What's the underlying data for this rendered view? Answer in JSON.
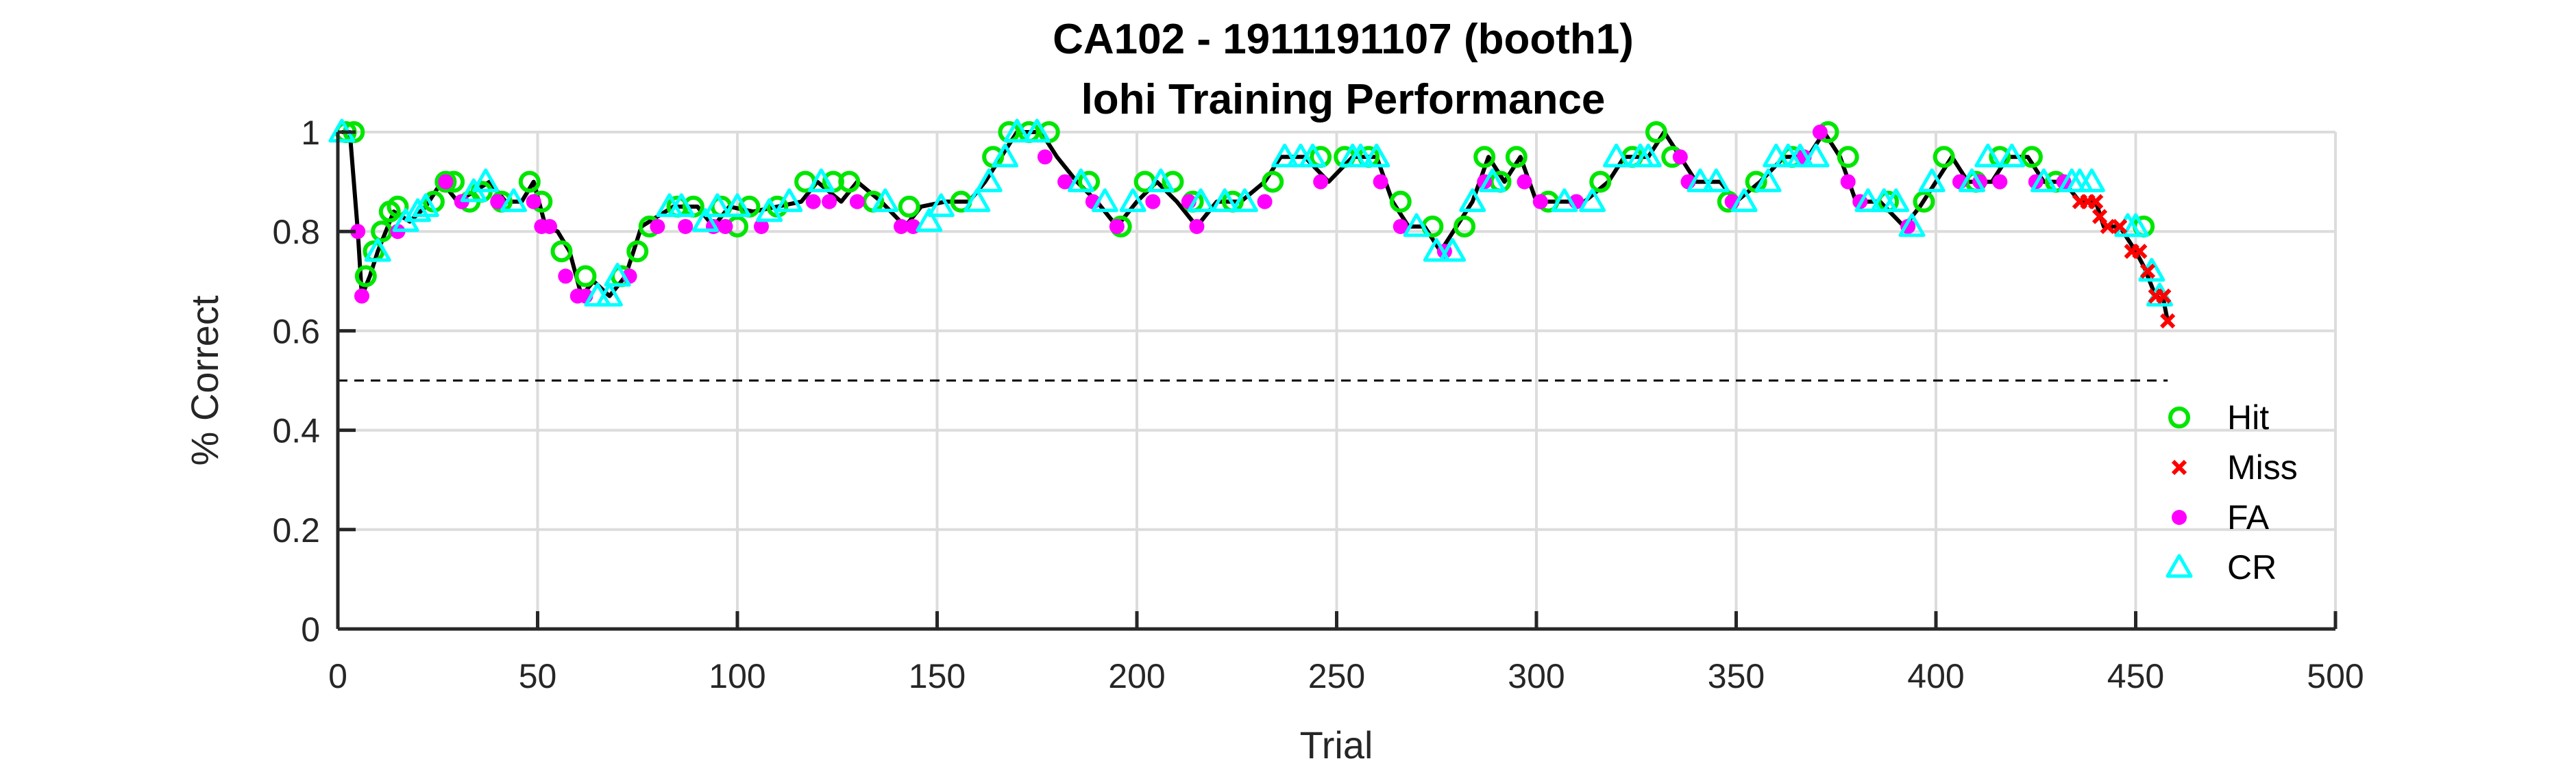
{
  "chart_data": {
    "type": "scatter",
    "title": "CA102 - 1911191107 (booth1)",
    "subtitle": "lohi Training Performance",
    "xlabel": "Trial",
    "ylabel": "% Correct",
    "xlim": [
      0,
      500
    ],
    "ylim": [
      0,
      1
    ],
    "xticks": [
      "0",
      "50",
      "100",
      "150",
      "200",
      "250",
      "300",
      "350",
      "400",
      "450",
      "500"
    ],
    "yticks": [
      "0",
      "0.2",
      "0.4",
      "0.6",
      "0.8",
      "1"
    ],
    "grid": true,
    "reference_line": {
      "y": 0.5,
      "style": "dashed"
    },
    "legend_position": "bottom-right",
    "colors": {
      "Hit": "#00e600",
      "Miss": "#ff0000",
      "FA": "#ff00ff",
      "CR": "#00ffff",
      "line": "#000000"
    },
    "line_points": [
      [
        1,
        1.0
      ],
      [
        3,
        1.0
      ],
      [
        5,
        0.8
      ],
      [
        6,
        0.67
      ],
      [
        8,
        0.71
      ],
      [
        10,
        0.76
      ],
      [
        12,
        0.8
      ],
      [
        14,
        0.84
      ],
      [
        18,
        0.82
      ],
      [
        22,
        0.85
      ],
      [
        26,
        0.9
      ],
      [
        30,
        0.86
      ],
      [
        34,
        0.88
      ],
      [
        38,
        0.9
      ],
      [
        42,
        0.86
      ],
      [
        46,
        0.86
      ],
      [
        49,
        0.9
      ],
      [
        52,
        0.81
      ],
      [
        55,
        0.8
      ],
      [
        58,
        0.76
      ],
      [
        61,
        0.67
      ],
      [
        64,
        0.7
      ],
      [
        68,
        0.67
      ],
      [
        72,
        0.71
      ],
      [
        76,
        0.81
      ],
      [
        80,
        0.83
      ],
      [
        84,
        0.85
      ],
      [
        90,
        0.85
      ],
      [
        94,
        0.81
      ],
      [
        98,
        0.85
      ],
      [
        104,
        0.84
      ],
      [
        110,
        0.85
      ],
      [
        116,
        0.86
      ],
      [
        120,
        0.9
      ],
      [
        126,
        0.86
      ],
      [
        130,
        0.9
      ],
      [
        136,
        0.86
      ],
      [
        142,
        0.81
      ],
      [
        146,
        0.85
      ],
      [
        152,
        0.86
      ],
      [
        158,
        0.86
      ],
      [
        162,
        0.9
      ],
      [
        166,
        0.95
      ],
      [
        170,
        1.0
      ],
      [
        176,
        1.0
      ],
      [
        180,
        0.95
      ],
      [
        185,
        0.9
      ],
      [
        190,
        0.86
      ],
      [
        195,
        0.81
      ],
      [
        200,
        0.86
      ],
      [
        205,
        0.9
      ],
      [
        210,
        0.86
      ],
      [
        215,
        0.81
      ],
      [
        220,
        0.86
      ],
      [
        226,
        0.86
      ],
      [
        232,
        0.9
      ],
      [
        236,
        0.95
      ],
      [
        242,
        0.95
      ],
      [
        248,
        0.9
      ],
      [
        254,
        0.95
      ],
      [
        260,
        0.95
      ],
      [
        264,
        0.86
      ],
      [
        268,
        0.81
      ],
      [
        272,
        0.81
      ],
      [
        276,
        0.76
      ],
      [
        280,
        0.81
      ],
      [
        284,
        0.86
      ],
      [
        288,
        0.95
      ],
      [
        292,
        0.9
      ],
      [
        296,
        0.95
      ],
      [
        300,
        0.86
      ],
      [
        306,
        0.86
      ],
      [
        312,
        0.86
      ],
      [
        318,
        0.9
      ],
      [
        322,
        0.95
      ],
      [
        328,
        0.95
      ],
      [
        332,
        1.0
      ],
      [
        336,
        0.95
      ],
      [
        340,
        0.9
      ],
      [
        346,
        0.9
      ],
      [
        350,
        0.86
      ],
      [
        356,
        0.9
      ],
      [
        362,
        0.95
      ],
      [
        368,
        0.95
      ],
      [
        372,
        1.0
      ],
      [
        376,
        0.95
      ],
      [
        380,
        0.86
      ],
      [
        386,
        0.86
      ],
      [
        392,
        0.81
      ],
      [
        396,
        0.85
      ],
      [
        400,
        0.9
      ],
      [
        404,
        0.95
      ],
      [
        408,
        0.9
      ],
      [
        414,
        0.9
      ],
      [
        418,
        0.95
      ],
      [
        423,
        0.95
      ],
      [
        427,
        0.9
      ],
      [
        432,
        0.9
      ],
      [
        436,
        0.86
      ],
      [
        440,
        0.86
      ],
      [
        442,
        0.81
      ],
      [
        446,
        0.81
      ],
      [
        450,
        0.76
      ],
      [
        452,
        0.73
      ],
      [
        455,
        0.67
      ],
      [
        457,
        0.66
      ],
      [
        458,
        0.62
      ]
    ],
    "series": [
      {
        "name": "Hit",
        "marker": "circle-open",
        "points": [
          [
            2,
            1.0
          ],
          [
            4,
            1.0
          ],
          [
            7,
            0.71
          ],
          [
            9,
            0.76
          ],
          [
            11,
            0.8
          ],
          [
            13,
            0.84
          ],
          [
            15,
            0.85
          ],
          [
            24,
            0.86
          ],
          [
            27,
            0.9
          ],
          [
            29,
            0.9
          ],
          [
            33,
            0.86
          ],
          [
            36,
            0.88
          ],
          [
            41,
            0.86
          ],
          [
            48,
            0.9
          ],
          [
            51,
            0.86
          ],
          [
            56,
            0.76
          ],
          [
            62,
            0.71
          ],
          [
            71,
            0.71
          ],
          [
            75,
            0.76
          ],
          [
            78,
            0.81
          ],
          [
            85,
            0.85
          ],
          [
            89,
            0.85
          ],
          [
            96,
            0.85
          ],
          [
            100,
            0.81
          ],
          [
            103,
            0.85
          ],
          [
            110,
            0.85
          ],
          [
            117,
            0.9
          ],
          [
            124,
            0.9
          ],
          [
            128,
            0.9
          ],
          [
            134,
            0.86
          ],
          [
            143,
            0.85
          ],
          [
            156,
            0.86
          ],
          [
            164,
            0.95
          ],
          [
            168,
            1.0
          ],
          [
            173,
            1.0
          ],
          [
            178,
            1.0
          ],
          [
            188,
            0.9
          ],
          [
            196,
            0.81
          ],
          [
            202,
            0.9
          ],
          [
            209,
            0.9
          ],
          [
            214,
            0.86
          ],
          [
            224,
            0.86
          ],
          [
            234,
            0.9
          ],
          [
            246,
            0.95
          ],
          [
            252,
            0.95
          ],
          [
            258,
            0.95
          ],
          [
            266,
            0.86
          ],
          [
            274,
            0.81
          ],
          [
            282,
            0.81
          ],
          [
            287,
            0.95
          ],
          [
            291,
            0.9
          ],
          [
            295,
            0.95
          ],
          [
            303,
            0.86
          ],
          [
            316,
            0.9
          ],
          [
            324,
            0.95
          ],
          [
            330,
            1.0
          ],
          [
            334,
            0.95
          ],
          [
            348,
            0.86
          ],
          [
            355,
            0.9
          ],
          [
            364,
            0.95
          ],
          [
            373,
            1.0
          ],
          [
            378,
            0.95
          ],
          [
            388,
            0.86
          ],
          [
            397,
            0.86
          ],
          [
            402,
            0.95
          ],
          [
            410,
            0.9
          ],
          [
            416,
            0.95
          ],
          [
            424,
            0.95
          ],
          [
            430,
            0.9
          ],
          [
            452,
            0.81
          ]
        ]
      },
      {
        "name": "Miss",
        "marker": "x",
        "points": [
          [
            436,
            0.86
          ],
          [
            438,
            0.86
          ],
          [
            440,
            0.86
          ],
          [
            441,
            0.83
          ],
          [
            443,
            0.81
          ],
          [
            446,
            0.81
          ],
          [
            449,
            0.76
          ],
          [
            451,
            0.76
          ],
          [
            453,
            0.72
          ],
          [
            455,
            0.67
          ],
          [
            457,
            0.67
          ],
          [
            458,
            0.62
          ]
        ]
      },
      {
        "name": "FA",
        "marker": "circle-filled",
        "points": [
          [
            5,
            0.8
          ],
          [
            6,
            0.67
          ],
          [
            15,
            0.8
          ],
          [
            27,
            0.9
          ],
          [
            31,
            0.86
          ],
          [
            40,
            0.86
          ],
          [
            49,
            0.86
          ],
          [
            51,
            0.81
          ],
          [
            53,
            0.81
          ],
          [
            57,
            0.71
          ],
          [
            60,
            0.67
          ],
          [
            62,
            0.67
          ],
          [
            73,
            0.71
          ],
          [
            80,
            0.81
          ],
          [
            87,
            0.81
          ],
          [
            94,
            0.81
          ],
          [
            97,
            0.81
          ],
          [
            106,
            0.81
          ],
          [
            119,
            0.86
          ],
          [
            123,
            0.86
          ],
          [
            130,
            0.86
          ],
          [
            141,
            0.81
          ],
          [
            144,
            0.81
          ],
          [
            177,
            0.95
          ],
          [
            182,
            0.9
          ],
          [
            189,
            0.86
          ],
          [
            195,
            0.81
          ],
          [
            204,
            0.86
          ],
          [
            213,
            0.86
          ],
          [
            215,
            0.81
          ],
          [
            232,
            0.86
          ],
          [
            246,
            0.9
          ],
          [
            261,
            0.9
          ],
          [
            266,
            0.81
          ],
          [
            277,
            0.76
          ],
          [
            287,
            0.9
          ],
          [
            297,
            0.9
          ],
          [
            301,
            0.86
          ],
          [
            310,
            0.86
          ],
          [
            336,
            0.95
          ],
          [
            338,
            0.9
          ],
          [
            349,
            0.86
          ],
          [
            367,
            0.95
          ],
          [
            371,
            1.0
          ],
          [
            378,
            0.9
          ],
          [
            381,
            0.86
          ],
          [
            393,
            0.81
          ],
          [
            406,
            0.9
          ],
          [
            411,
            0.9
          ],
          [
            416,
            0.9
          ],
          [
            425,
            0.9
          ],
          [
            432,
            0.9
          ]
        ]
      },
      {
        "name": "CR",
        "marker": "triangle-open",
        "points": [
          [
            1,
            1.0
          ],
          [
            10,
            0.76
          ],
          [
            17,
            0.82
          ],
          [
            20,
            0.84
          ],
          [
            22,
            0.85
          ],
          [
            34,
            0.88
          ],
          [
            37,
            0.9
          ],
          [
            44,
            0.86
          ],
          [
            65,
            0.67
          ],
          [
            68,
            0.67
          ],
          [
            70,
            0.71
          ],
          [
            83,
            0.85
          ],
          [
            86,
            0.85
          ],
          [
            92,
            0.82
          ],
          [
            95,
            0.85
          ],
          [
            100,
            0.85
          ],
          [
            108,
            0.84
          ],
          [
            113,
            0.86
          ],
          [
            121,
            0.9
          ],
          [
            137,
            0.86
          ],
          [
            148,
            0.82
          ],
          [
            151,
            0.85
          ],
          [
            160,
            0.86
          ],
          [
            163,
            0.9
          ],
          [
            167,
            0.95
          ],
          [
            170,
            1.0
          ],
          [
            175,
            1.0
          ],
          [
            186,
            0.9
          ],
          [
            192,
            0.86
          ],
          [
            199,
            0.86
          ],
          [
            206,
            0.9
          ],
          [
            216,
            0.86
          ],
          [
            222,
            0.86
          ],
          [
            227,
            0.86
          ],
          [
            237,
            0.95
          ],
          [
            241,
            0.95
          ],
          [
            244,
            0.95
          ],
          [
            254,
            0.95
          ],
          [
            256,
            0.95
          ],
          [
            260,
            0.95
          ],
          [
            270,
            0.81
          ],
          [
            275,
            0.76
          ],
          [
            279,
            0.76
          ],
          [
            284,
            0.86
          ],
          [
            289,
            0.9
          ],
          [
            307,
            0.86
          ],
          [
            314,
            0.86
          ],
          [
            320,
            0.95
          ],
          [
            326,
            0.95
          ],
          [
            328,
            0.95
          ],
          [
            341,
            0.9
          ],
          [
            345,
            0.9
          ],
          [
            352,
            0.86
          ],
          [
            358,
            0.9
          ],
          [
            360,
            0.95
          ],
          [
            363,
            0.95
          ],
          [
            366,
            0.95
          ],
          [
            370,
            0.95
          ],
          [
            383,
            0.86
          ],
          [
            387,
            0.86
          ],
          [
            390,
            0.86
          ],
          [
            394,
            0.81
          ],
          [
            399,
            0.9
          ],
          [
            409,
            0.9
          ],
          [
            413,
            0.95
          ],
          [
            419,
            0.95
          ],
          [
            427,
            0.9
          ],
          [
            434,
            0.9
          ],
          [
            436,
            0.9
          ],
          [
            439,
            0.9
          ],
          [
            448,
            0.81
          ],
          [
            450,
            0.81
          ],
          [
            454,
            0.72
          ],
          [
            456,
            0.67
          ]
        ]
      }
    ]
  }
}
